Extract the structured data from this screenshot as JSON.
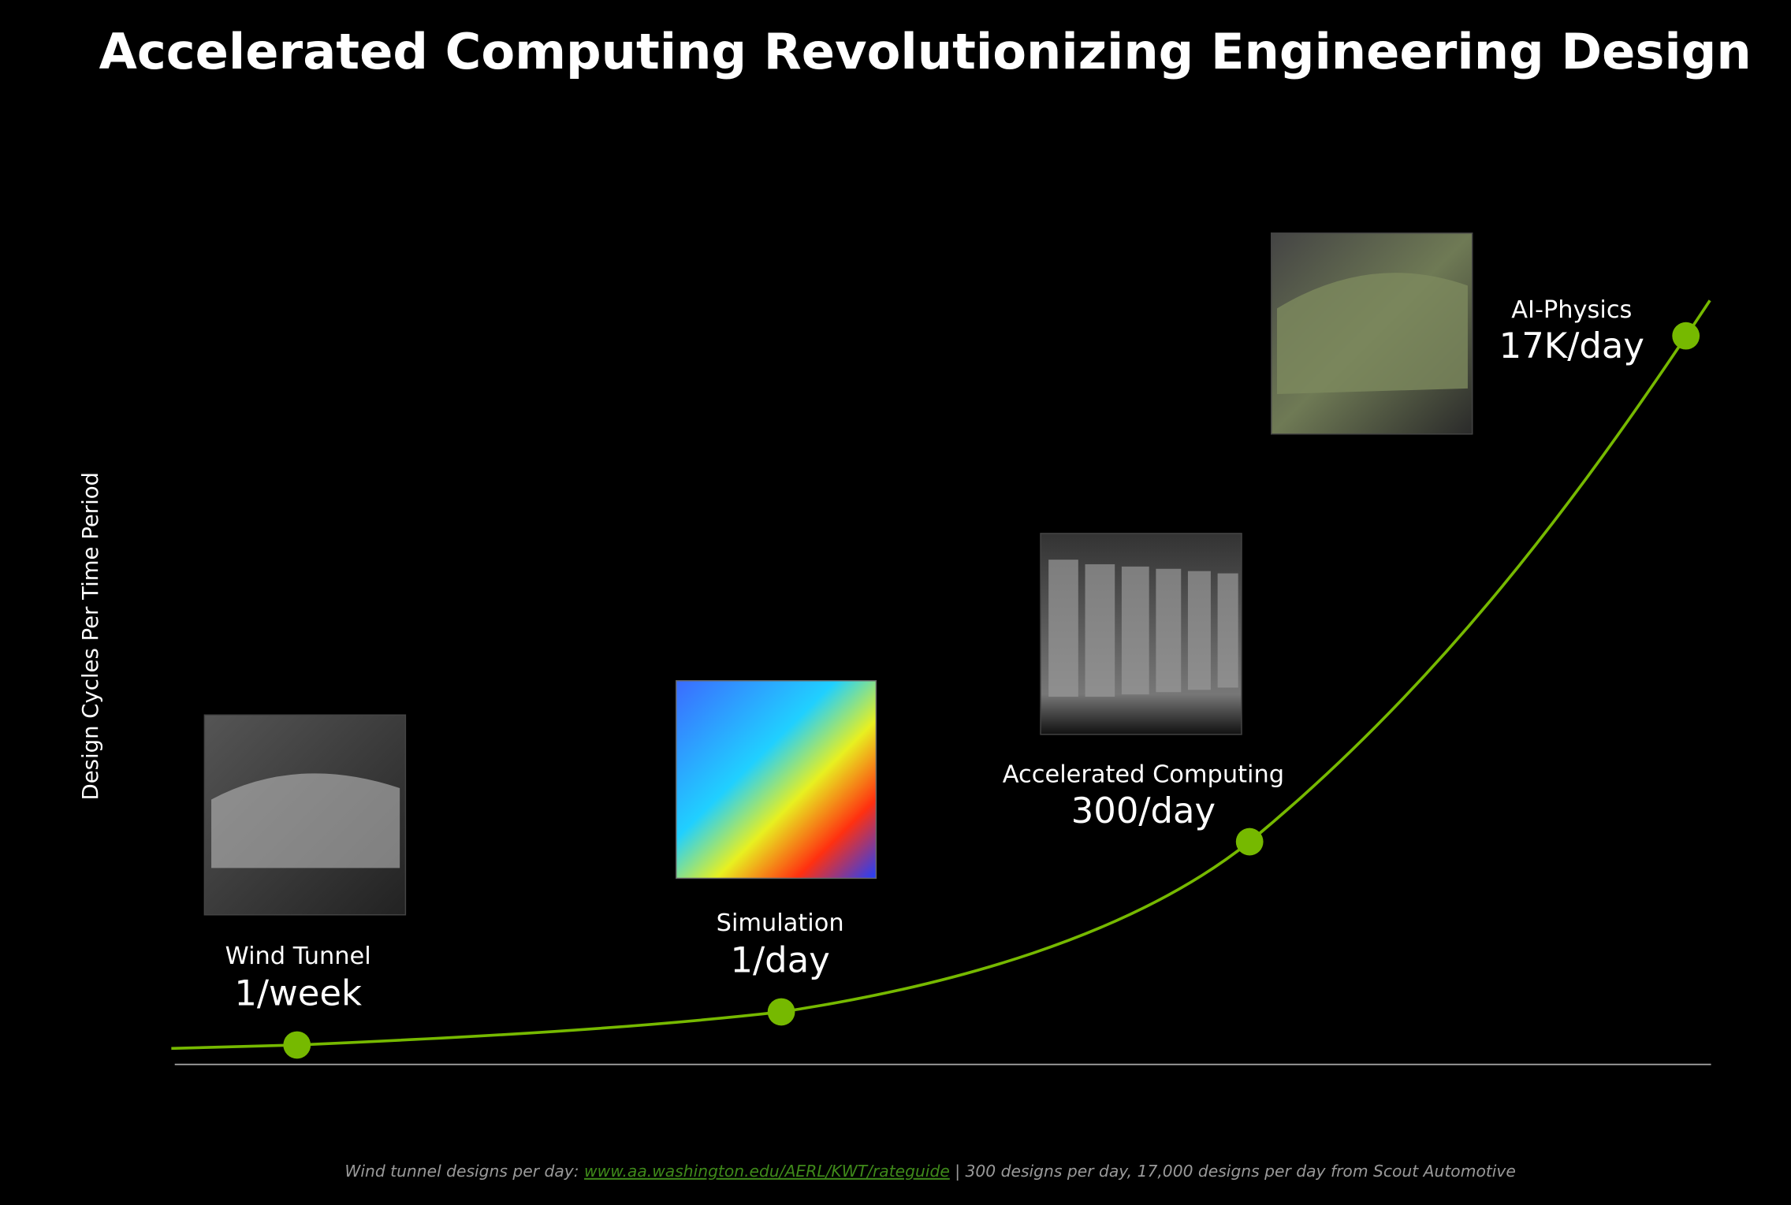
{
  "title": "Accelerated Computing Revolutionizing Engineering Design",
  "y_axis_label": "Design Cycles Per Time Period",
  "stages": [
    {
      "label": "Wind Tunnel",
      "rate": "1/week"
    },
    {
      "label": "Simulation",
      "rate": "1/day"
    },
    {
      "label": "Accelerated Computing",
      "rate": "300/day"
    },
    {
      "label": "AI-Physics",
      "rate": "17K/day"
    }
  ],
  "footnote": {
    "prefix": "Wind tunnel designs per day: ",
    "link": "www.aa.washington.edu/AERL/KWT/rateguide",
    "suffix": " | 300 designs per day, 17,000 designs per day from Scout Automotive"
  }
}
